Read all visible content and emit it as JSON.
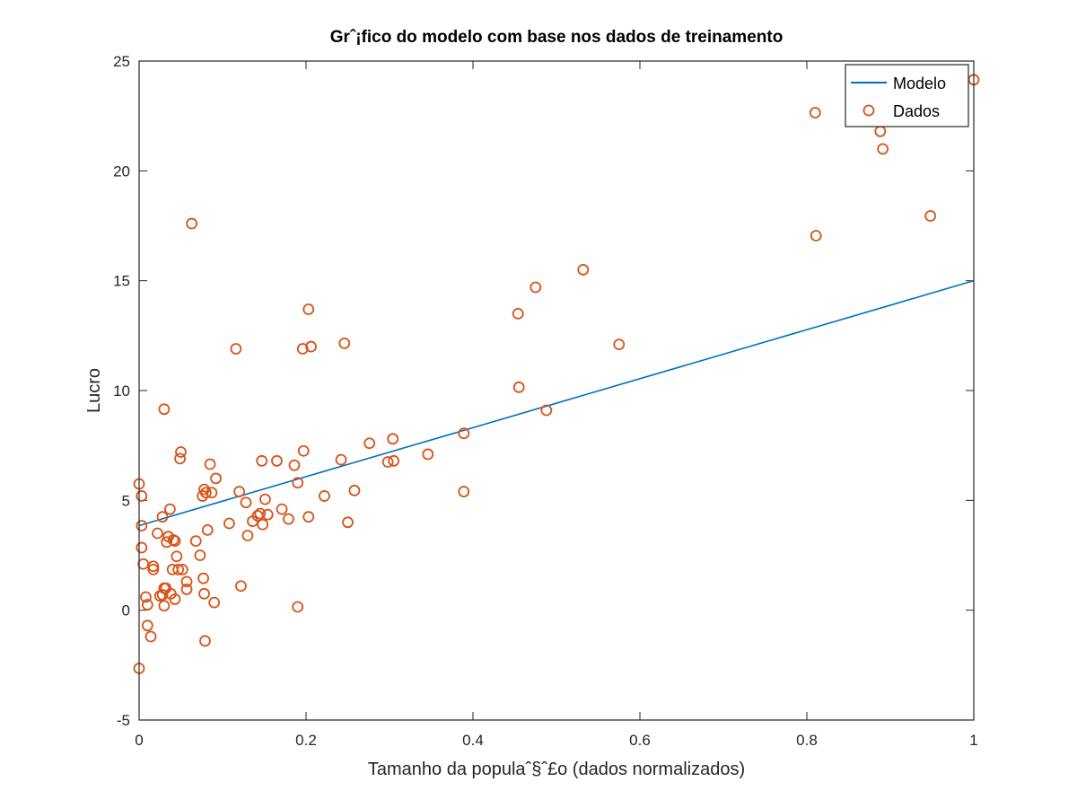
{
  "chart_data": {
    "type": "scatter",
    "title": "Grˆ¡fico do modelo com base nos dados de treinamento",
    "xlabel": "Tamanho da populaˆ§ˆ£o (dados normalizados)",
    "ylabel": "Lucro",
    "xlim": [
      0,
      1
    ],
    "ylim": [
      -5,
      25
    ],
    "xticks": [
      0,
      0.2,
      0.4,
      0.6,
      0.8,
      1
    ],
    "xtick_labels": [
      "0",
      "0.2",
      "0.4",
      "0.6",
      "0.8",
      "1"
    ],
    "yticks": [
      -5,
      0,
      5,
      10,
      15,
      20,
      25
    ],
    "ytick_labels": [
      "-5",
      "0",
      "5",
      "10",
      "15",
      "20",
      "25"
    ],
    "grid": false,
    "legend_position": "top-right",
    "series": [
      {
        "name": "Modelo",
        "kind": "line",
        "color": "#0072BD",
        "x": [
          0,
          1
        ],
        "y": [
          3.85,
          15.0
        ]
      },
      {
        "name": "Dados",
        "kind": "scatter",
        "marker": "circle-open",
        "color": "#D95319",
        "points": [
          [
            0.063,
            17.6
          ],
          [
            0.03,
            9.15
          ],
          [
            0.0,
            5.75
          ],
          [
            0.003,
            5.2
          ],
          [
            0.003,
            3.85
          ],
          [
            0.003,
            2.85
          ],
          [
            0.005,
            2.1
          ],
          [
            0.008,
            0.6
          ],
          [
            0.01,
            0.25
          ],
          [
            0.01,
            -0.7
          ],
          [
            0.014,
            -1.2
          ],
          [
            0.0,
            -2.65
          ],
          [
            0.017,
            2.0
          ],
          [
            0.017,
            1.85
          ],
          [
            0.022,
            3.5
          ],
          [
            0.025,
            0.65
          ],
          [
            0.028,
            0.7
          ],
          [
            0.028,
            4.25
          ],
          [
            0.03,
            1.0
          ],
          [
            0.03,
            0.2
          ],
          [
            0.032,
            1.0
          ],
          [
            0.033,
            3.1
          ],
          [
            0.035,
            3.35
          ],
          [
            0.037,
            4.6
          ],
          [
            0.038,
            0.75
          ],
          [
            0.04,
            1.85
          ],
          [
            0.041,
            3.2
          ],
          [
            0.043,
            3.15
          ],
          [
            0.043,
            0.5
          ],
          [
            0.045,
            2.45
          ],
          [
            0.047,
            1.85
          ],
          [
            0.049,
            6.9
          ],
          [
            0.05,
            7.2
          ],
          [
            0.052,
            1.85
          ],
          [
            0.057,
            1.3
          ],
          [
            0.057,
            0.95
          ],
          [
            0.068,
            3.15
          ],
          [
            0.073,
            2.5
          ],
          [
            0.076,
            5.2
          ],
          [
            0.077,
            1.45
          ],
          [
            0.078,
            5.5
          ],
          [
            0.078,
            0.75
          ],
          [
            0.079,
            -1.4
          ],
          [
            0.08,
            5.35
          ],
          [
            0.082,
            3.65
          ],
          [
            0.085,
            6.65
          ],
          [
            0.087,
            5.35
          ],
          [
            0.09,
            0.35
          ],
          [
            0.092,
            6.0
          ],
          [
            0.108,
            3.95
          ],
          [
            0.116,
            11.9
          ],
          [
            0.12,
            5.4
          ],
          [
            0.122,
            1.1
          ],
          [
            0.128,
            4.9
          ],
          [
            0.13,
            3.4
          ],
          [
            0.136,
            4.05
          ],
          [
            0.142,
            4.3
          ],
          [
            0.145,
            4.4
          ],
          [
            0.147,
            6.8
          ],
          [
            0.148,
            3.9
          ],
          [
            0.151,
            5.05
          ],
          [
            0.154,
            4.35
          ],
          [
            0.165,
            6.8
          ],
          [
            0.171,
            4.6
          ],
          [
            0.179,
            4.15
          ],
          [
            0.186,
            6.6
          ],
          [
            0.19,
            5.8
          ],
          [
            0.19,
            0.15
          ],
          [
            0.196,
            11.9
          ],
          [
            0.197,
            7.25
          ],
          [
            0.203,
            13.7
          ],
          [
            0.203,
            4.25
          ],
          [
            0.206,
            12.0
          ],
          [
            0.222,
            5.2
          ],
          [
            0.242,
            6.85
          ],
          [
            0.246,
            12.15
          ],
          [
            0.25,
            4.0
          ],
          [
            0.258,
            5.45
          ],
          [
            0.276,
            7.6
          ],
          [
            0.298,
            6.75
          ],
          [
            0.304,
            7.8
          ],
          [
            0.305,
            6.8
          ],
          [
            0.346,
            7.1
          ],
          [
            0.389,
            8.05
          ],
          [
            0.389,
            5.4
          ],
          [
            0.454,
            13.5
          ],
          [
            0.455,
            10.15
          ],
          [
            0.475,
            14.7
          ],
          [
            0.488,
            9.1
          ],
          [
            0.532,
            15.5
          ],
          [
            0.575,
            12.1
          ],
          [
            0.81,
            22.65
          ],
          [
            0.811,
            17.05
          ],
          [
            0.888,
            21.8
          ],
          [
            0.891,
            21.0
          ],
          [
            0.948,
            17.95
          ],
          [
            1.0,
            24.15
          ]
        ]
      }
    ]
  }
}
